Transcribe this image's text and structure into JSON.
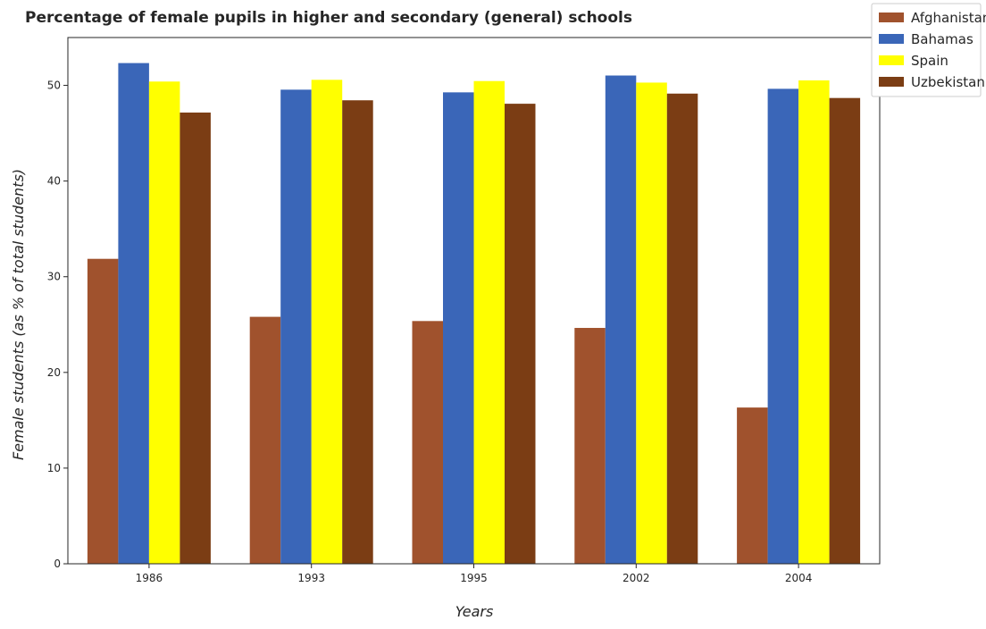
{
  "chart_data": {
    "type": "bar",
    "title": "Percentage of female pupils in higher and secondary (general) schools",
    "xlabel": "Years",
    "ylabel": "Female students (as % of total students)",
    "categories": [
      "1986",
      "1993",
      "1995",
      "2002",
      "2004"
    ],
    "ylim": [
      0,
      55
    ],
    "yticks": [
      0,
      10,
      20,
      30,
      40,
      50
    ],
    "grid": false,
    "legend_position": "top-right",
    "series": [
      {
        "name": "Afghanistan",
        "color": "#a0522d",
        "values": [
          31.87,
          25.81,
          25.37,
          24.65,
          16.33
        ]
      },
      {
        "name": "Bahamas",
        "color": "#3a66b8",
        "values": [
          52.33,
          49.55,
          49.27,
          51.03,
          49.64
        ]
      },
      {
        "name": "Spain",
        "color": "#ffff00",
        "values": [
          50.4,
          50.58,
          50.45,
          50.29,
          50.52
        ]
      },
      {
        "name": "Uzbekistan",
        "color": "#7b3d14",
        "values": [
          47.16,
          48.44,
          48.08,
          49.14,
          48.68
        ]
      }
    ]
  }
}
